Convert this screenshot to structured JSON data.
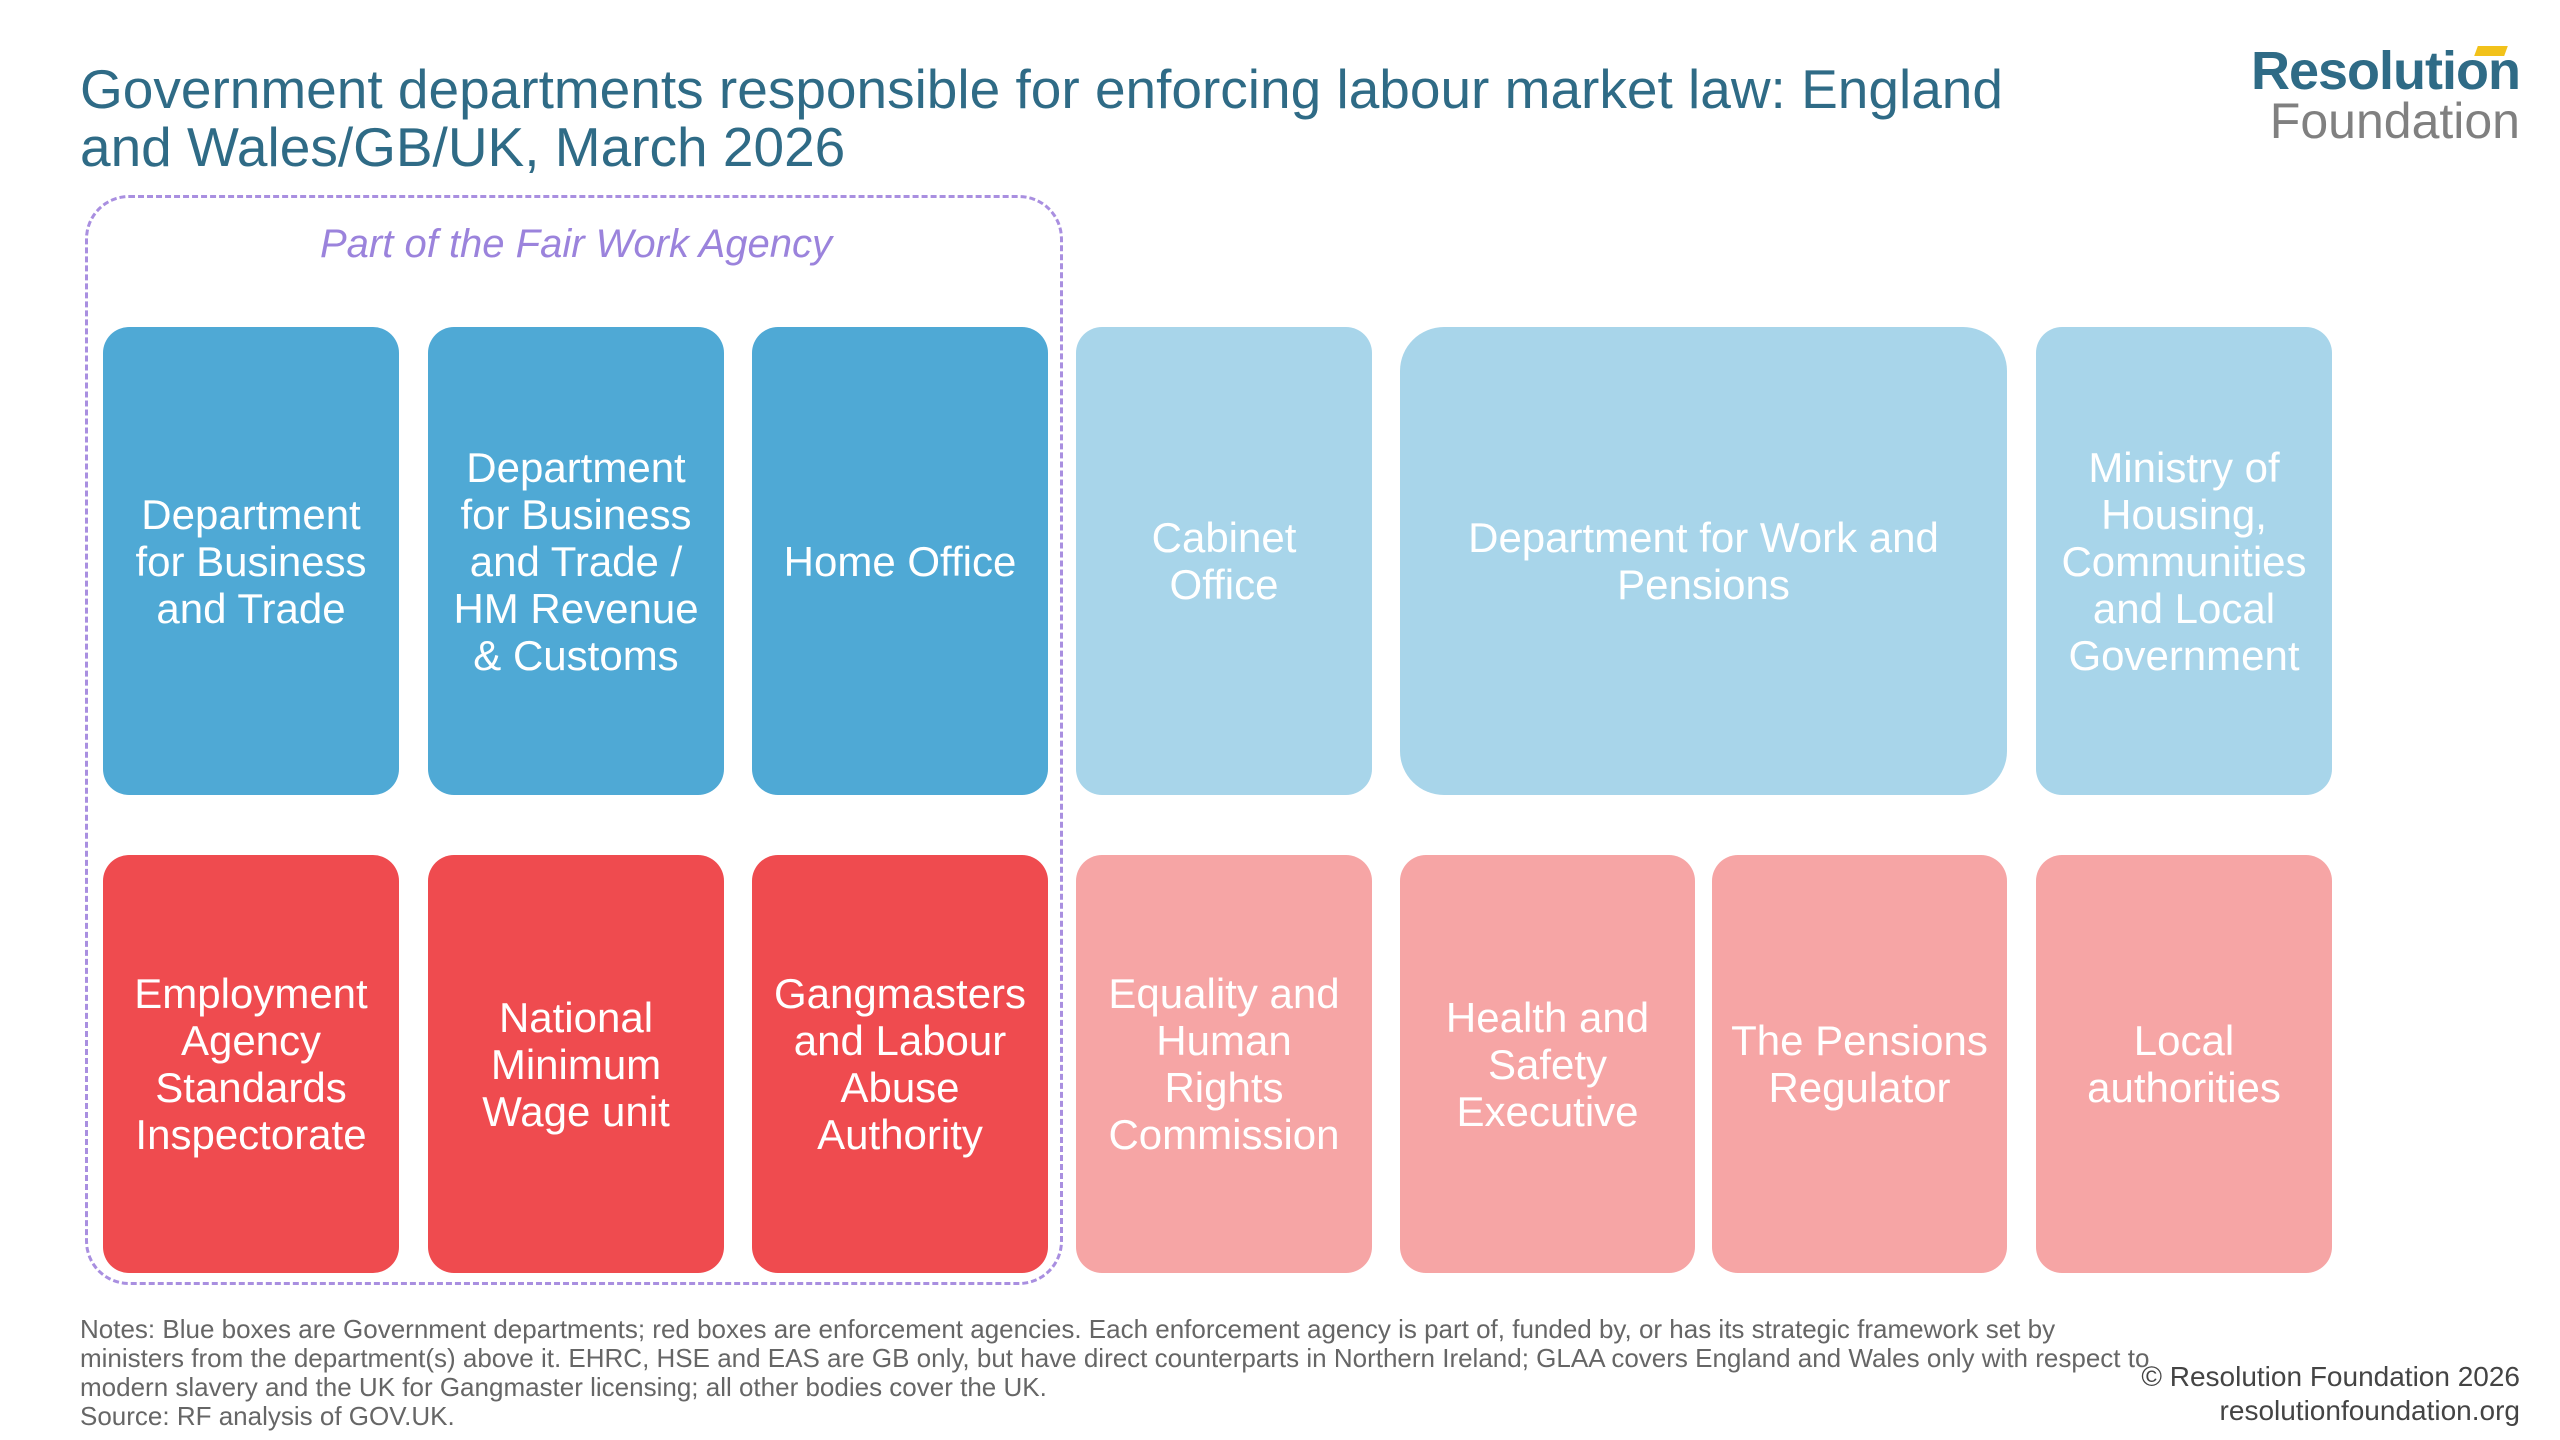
{
  "title": "Government departments responsible for enforcing labour market law: England and Wales/GB/UK, March 2026",
  "logo": {
    "line1": "Resolution",
    "line2": "Foundation"
  },
  "fair_work_agency_label": "Part of the Fair Work Agency",
  "departments": [
    {
      "name": "Department for Business and Trade",
      "fair_work_agency": true
    },
    {
      "name": "Department for Business and Trade / HM Revenue & Customs",
      "fair_work_agency": true
    },
    {
      "name": "Home Office",
      "fair_work_agency": true
    },
    {
      "name": "Cabinet Office",
      "fair_work_agency": false
    },
    {
      "name": "Department for Work and Pensions",
      "fair_work_agency": false
    },
    {
      "name": "Ministry of Housing, Communities and Local Government",
      "fair_work_agency": false
    }
  ],
  "agencies": [
    {
      "name": "Employment Agency Standards Inspectorate",
      "fair_work_agency": true
    },
    {
      "name": "National Minimum Wage unit",
      "fair_work_agency": true
    },
    {
      "name": "Gangmasters and Labour Abuse Authority",
      "fair_work_agency": true
    },
    {
      "name": "Equality and Human Rights Commission",
      "fair_work_agency": false
    },
    {
      "name": "Health and Safety Executive",
      "fair_work_agency": false
    },
    {
      "name": "The Pensions Regulator",
      "fair_work_agency": false
    },
    {
      "name": "Local authorities",
      "fair_work_agency": false
    }
  ],
  "notes": "Notes: Blue boxes are Government departments; red boxes are enforcement agencies. Each enforcement agency is part of, funded by, or has its strategic framework set by ministers from the department(s) above it. EHRC, HSE and EAS are GB only, but have direct counterparts in Northern Ireland; GLAA covers England and Wales only with respect to modern slavery and the UK for Gangmaster licensing; all other bodies cover the UK.",
  "source": "Source: RF analysis of GOV.UK.",
  "copyright": "© Resolution Foundation 2026",
  "website": "resolutionfoundation.org",
  "colors": {
    "department_fwa": "#4fa9d5",
    "department_other": "#a8d5ea",
    "agency_fwa": "#ef4b4f",
    "agency_other": "#f6a5a5",
    "title": "#2f6b86",
    "fwa_frame": "#a98fe0"
  }
}
